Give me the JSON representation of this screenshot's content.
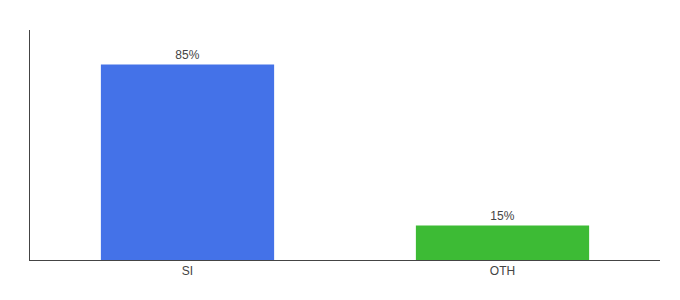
{
  "chart_data": {
    "type": "bar",
    "categories": [
      "SI",
      "OTH"
    ],
    "values": [
      85,
      15
    ],
    "value_labels": [
      "85%",
      "15%"
    ],
    "data_labels": true,
    "colors": [
      "#4472e8",
      "#3dbb35"
    ],
    "ylim": [
      0,
      100
    ],
    "yticks": [],
    "tick_labels": "x",
    "grid": false
  }
}
